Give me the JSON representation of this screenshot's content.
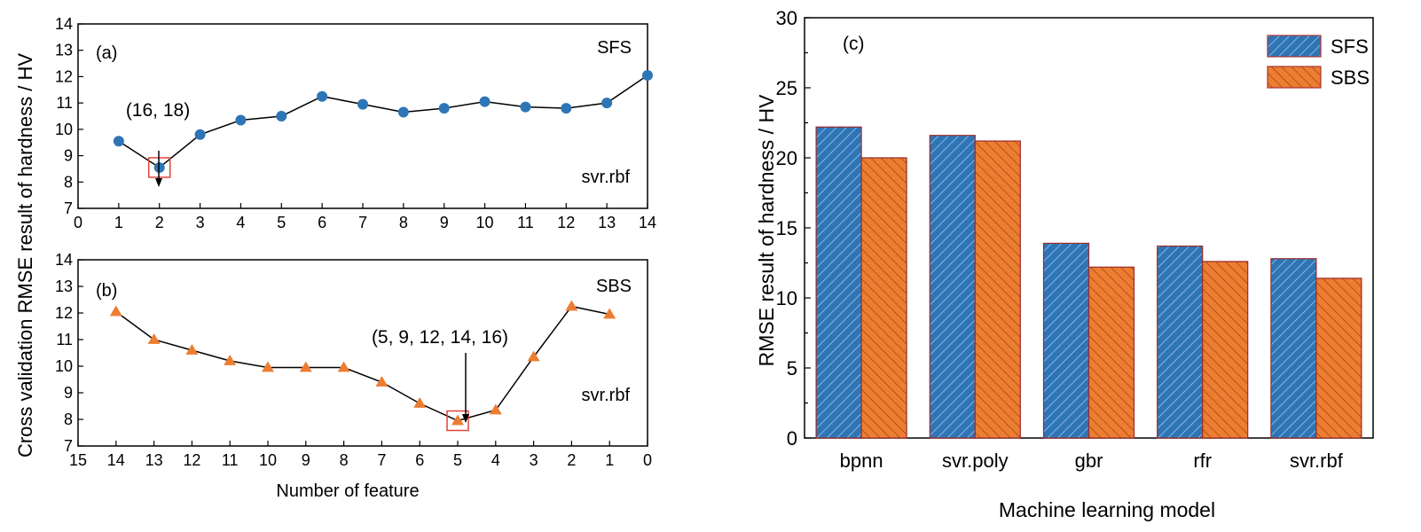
{
  "chart_data": [
    {
      "id": "a",
      "type": "line",
      "panel_label": "(a)",
      "series_label": "SFS",
      "model_label": "svr.rbf",
      "annotation": "(16, 18)",
      "highlight_x": 2,
      "xlim": [
        0,
        14
      ],
      "ylim": [
        7,
        14
      ],
      "xticks": [
        0,
        1,
        2,
        3,
        4,
        5,
        6,
        7,
        8,
        9,
        10,
        11,
        12,
        13,
        14
      ],
      "yticks": [
        7,
        8,
        9,
        10,
        11,
        12,
        13,
        14
      ],
      "x": [
        1,
        2,
        3,
        4,
        5,
        6,
        7,
        8,
        9,
        10,
        11,
        12,
        13,
        14
      ],
      "y": [
        9.55,
        8.55,
        9.8,
        10.35,
        10.5,
        11.25,
        10.95,
        10.65,
        10.8,
        11.05,
        10.85,
        10.8,
        11.0,
        12.05
      ],
      "marker": "circle",
      "color": "#2e75b6"
    },
    {
      "id": "b",
      "type": "line",
      "panel_label": "(b)",
      "series_label": "SBS",
      "model_label": "svr.rbf",
      "annotation": "(5, 9, 12, 14, 16)",
      "highlight_x": 5,
      "x_reversed": true,
      "xlim": [
        0,
        15
      ],
      "ylim": [
        7,
        14
      ],
      "xticks": [
        15,
        14,
        13,
        12,
        11,
        10,
        9,
        8,
        7,
        6,
        5,
        4,
        3,
        2,
        1,
        0
      ],
      "yticks": [
        7,
        8,
        9,
        10,
        11,
        12,
        13,
        14
      ],
      "x": [
        14,
        13,
        12,
        11,
        10,
        9,
        8,
        7,
        6,
        5,
        4,
        3,
        2,
        1
      ],
      "y": [
        12.05,
        11.0,
        10.6,
        10.2,
        9.95,
        9.95,
        9.95,
        9.4,
        8.6,
        7.95,
        8.35,
        10.35,
        12.25,
        11.95
      ],
      "marker": "triangle",
      "color": "#ed7d31"
    },
    {
      "id": "c",
      "type": "bar",
      "panel_label": "(c)",
      "categories": [
        "bpnn",
        "svr.poly",
        "gbr",
        "rfr",
        "svr.rbf"
      ],
      "series": [
        {
          "name": "SFS",
          "values": [
            22.2,
            21.6,
            13.9,
            13.7,
            12.8
          ],
          "color": "#2e75b6"
        },
        {
          "name": "SBS",
          "values": [
            20.0,
            21.2,
            12.2,
            12.6,
            11.4
          ],
          "color": "#ed7d31"
        }
      ],
      "ylim": [
        0,
        30
      ],
      "yticks": [
        0,
        5,
        10,
        15,
        20,
        25,
        30
      ],
      "xlabel": "Machine learning model",
      "ylabel": "RMSE result of hardness / HV",
      "legend": "top-right"
    }
  ],
  "shared_labels": {
    "left_ylabel": "Cross validation RMSE result of hardness / HV",
    "left_xlabel": "Number of feature"
  }
}
